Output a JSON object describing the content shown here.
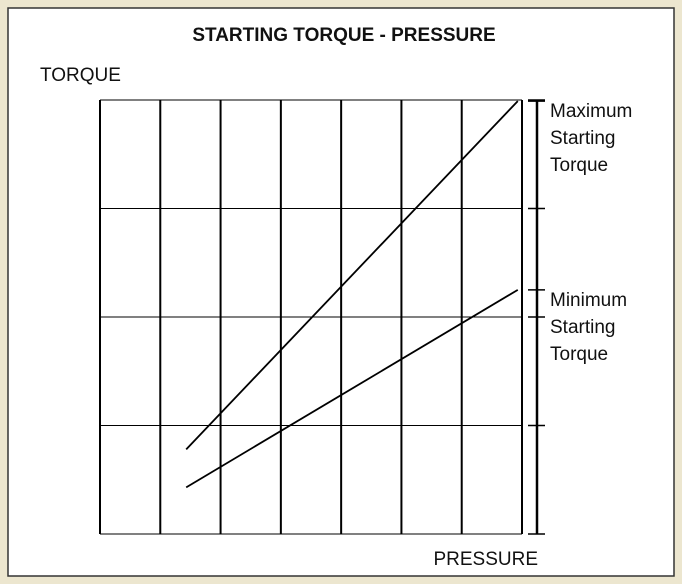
{
  "chart_data": {
    "type": "line",
    "title": "STARTING TORQUE - PRESSURE",
    "y_label": "TORQUE",
    "x_label": "PRESSURE",
    "xlim": [
      0,
      7
    ],
    "ylim": [
      0,
      4
    ],
    "xticks": [
      0,
      1,
      2,
      3,
      4,
      5,
      6,
      7
    ],
    "yticks": [
      0,
      1,
      2,
      3,
      4
    ],
    "grid": true,
    "series": [
      {
        "color": "#000000",
        "x": [
          1.43,
          6.93
        ],
        "values": [
          0.78,
          3.99
        ],
        "annotation": [
          "Maximum",
          "Starting",
          "Torque"
        ]
      },
      {
        "color": "#000000",
        "x": [
          1.43,
          6.93
        ],
        "values": [
          0.43,
          2.25
        ],
        "annotation": [
          "Minimum",
          "Starting",
          "Torque"
        ]
      }
    ]
  }
}
